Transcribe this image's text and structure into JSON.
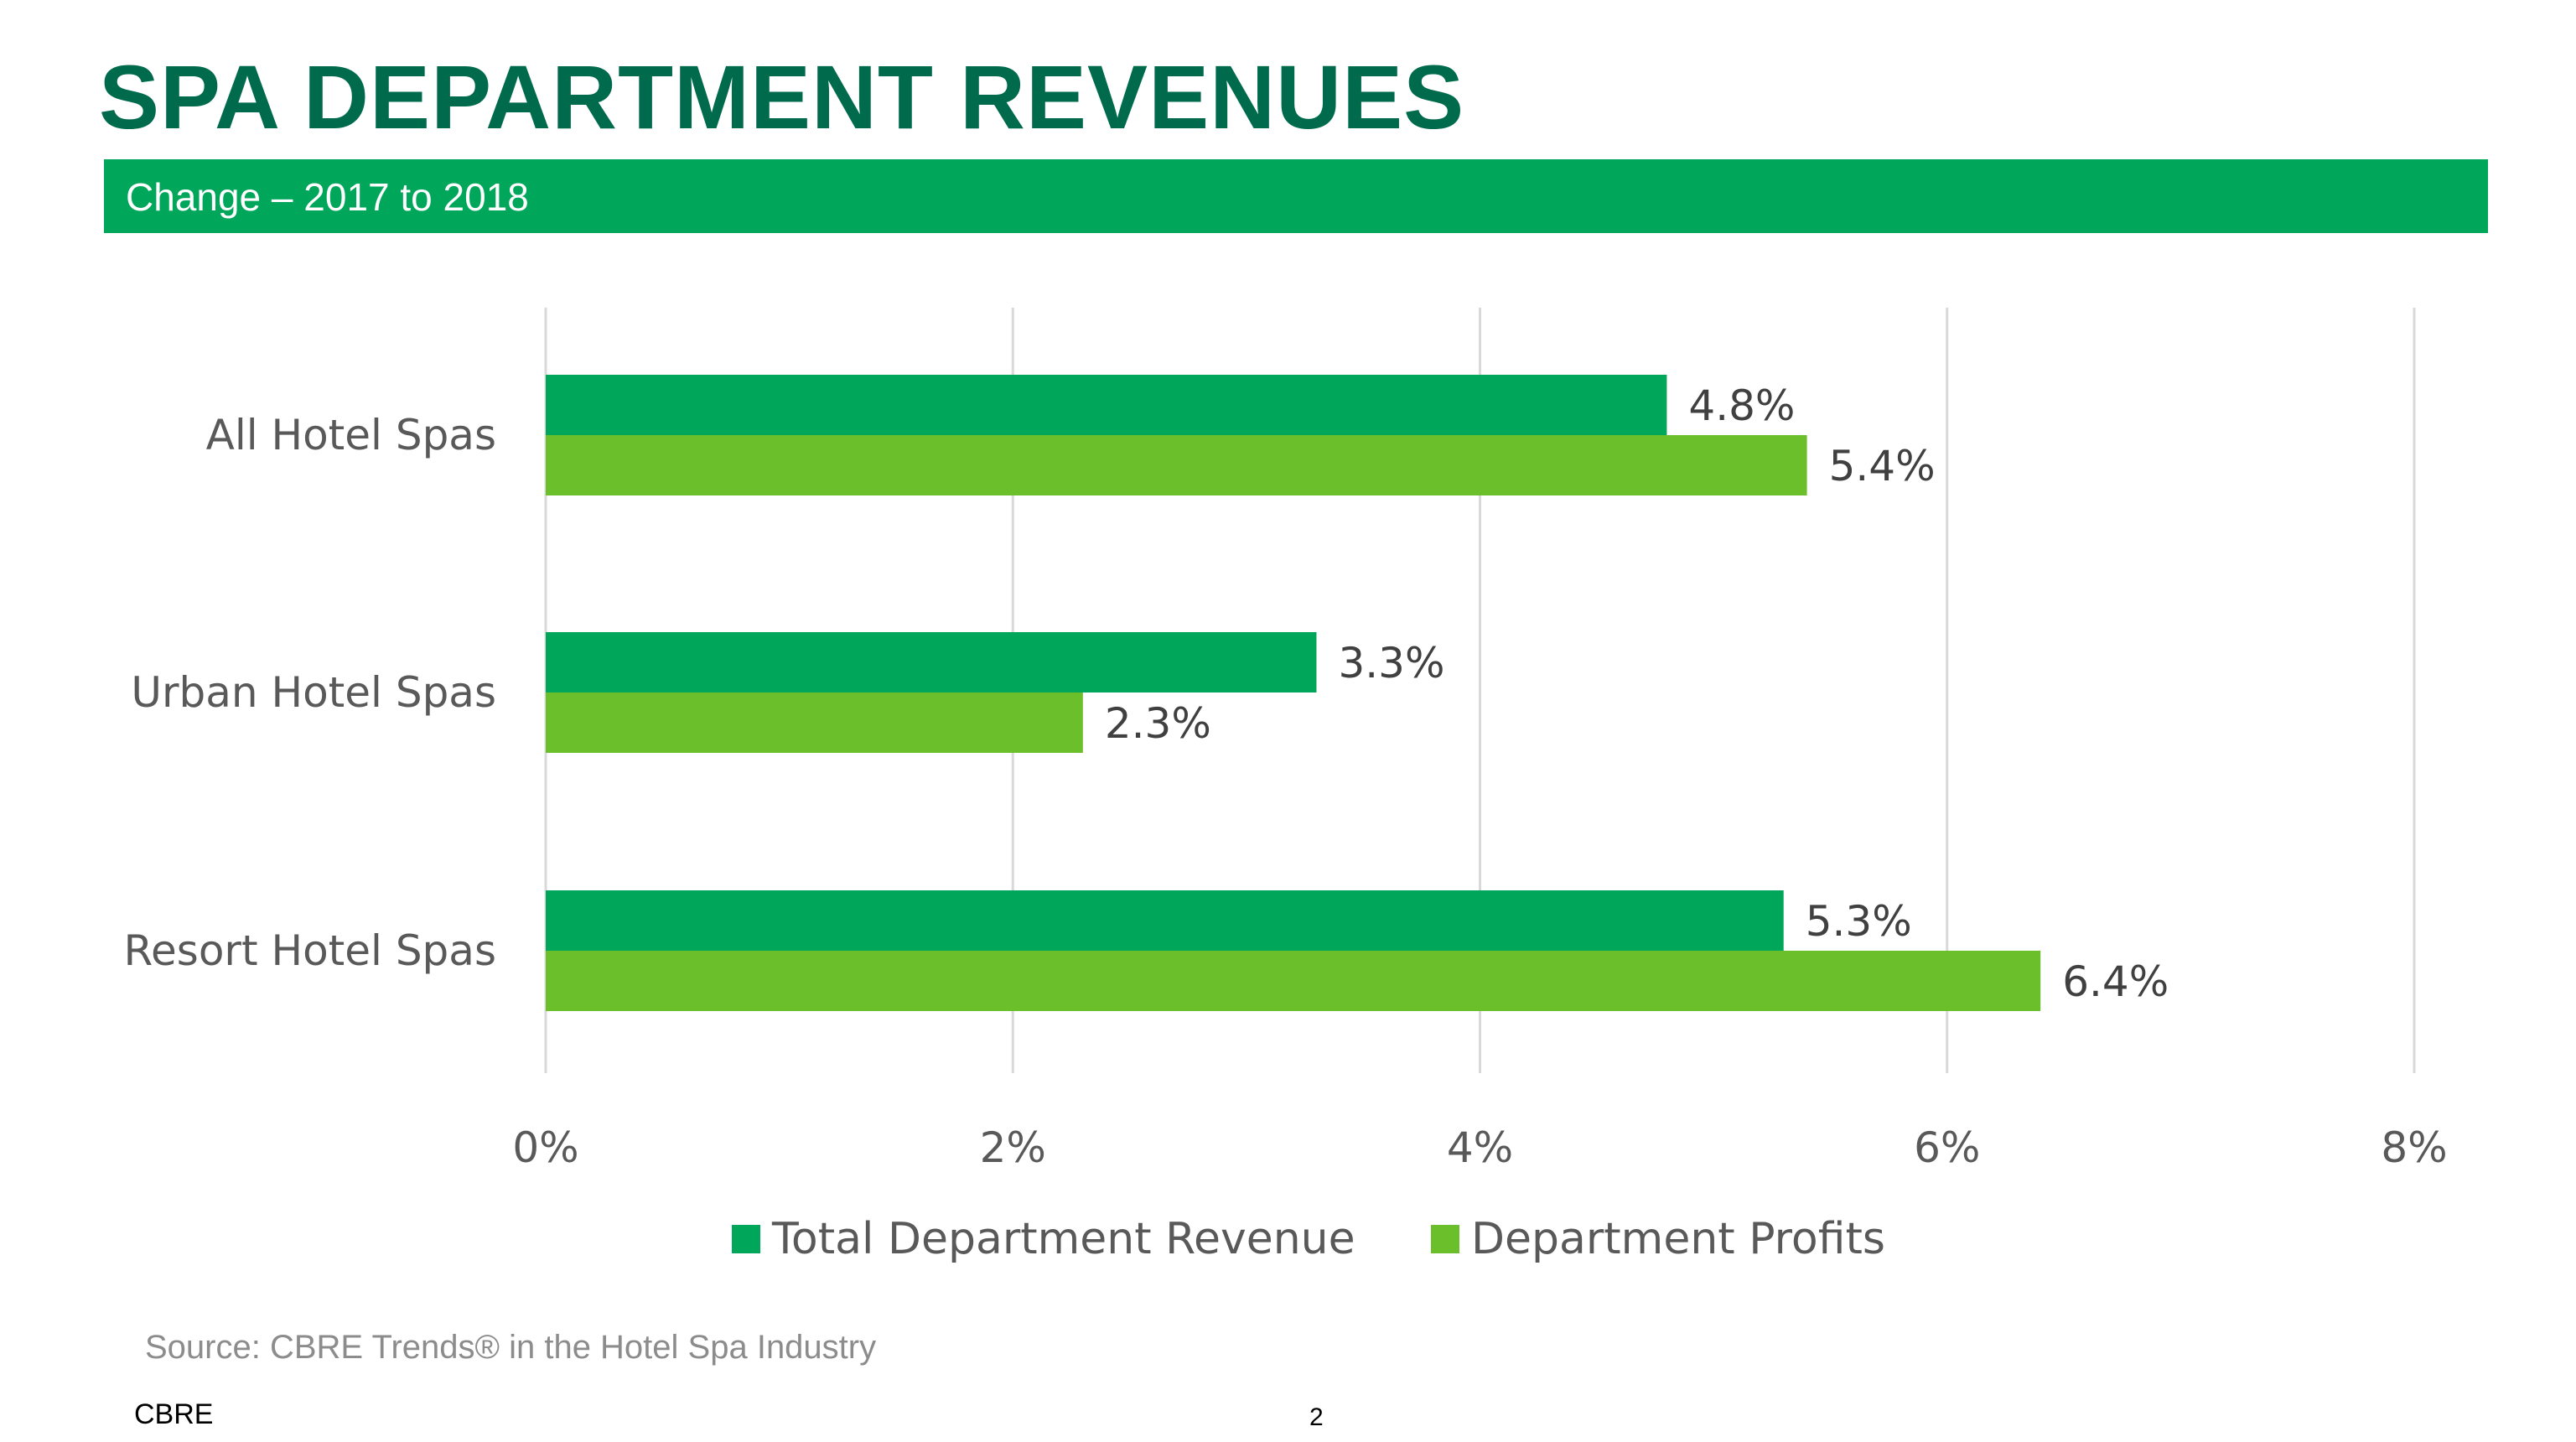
{
  "header": {
    "title": "SPA DEPARTMENT REVENUES",
    "subtitle": "Change – 2017 to 2018"
  },
  "colors": {
    "title": "#006A4D",
    "banner": "#00A65A",
    "series_revenue": "#00A65A",
    "series_profits": "#6ABF2A",
    "gridline": "#D9D9D9"
  },
  "chart_data": {
    "type": "bar",
    "orientation": "horizontal",
    "title": "",
    "xlabel": "",
    "ylabel": "",
    "categories": [
      "All Hotel Spas",
      "Urban Hotel Spas",
      "Resort Hotel Spas"
    ],
    "series": [
      {
        "name": "Total Department Revenue",
        "values": [
          4.8,
          3.3,
          5.3
        ],
        "labels": [
          "4.8%",
          "3.3%",
          "5.3%"
        ]
      },
      {
        "name": "Department Profits",
        "values": [
          5.4,
          2.3,
          6.4
        ],
        "labels": [
          "5.4%",
          "2.3%",
          "6.4%"
        ]
      }
    ],
    "xlim": [
      0,
      8
    ],
    "ticks": [
      0,
      2,
      4,
      6,
      8
    ],
    "tick_labels": [
      "0%",
      "2%",
      "4%",
      "6%",
      "8%"
    ],
    "grid": true,
    "legend_position": "bottom"
  },
  "footer": {
    "source": "Source: CBRE Trends® in the Hotel Spa Industry",
    "brand": "CBRE",
    "page_number": "2"
  }
}
